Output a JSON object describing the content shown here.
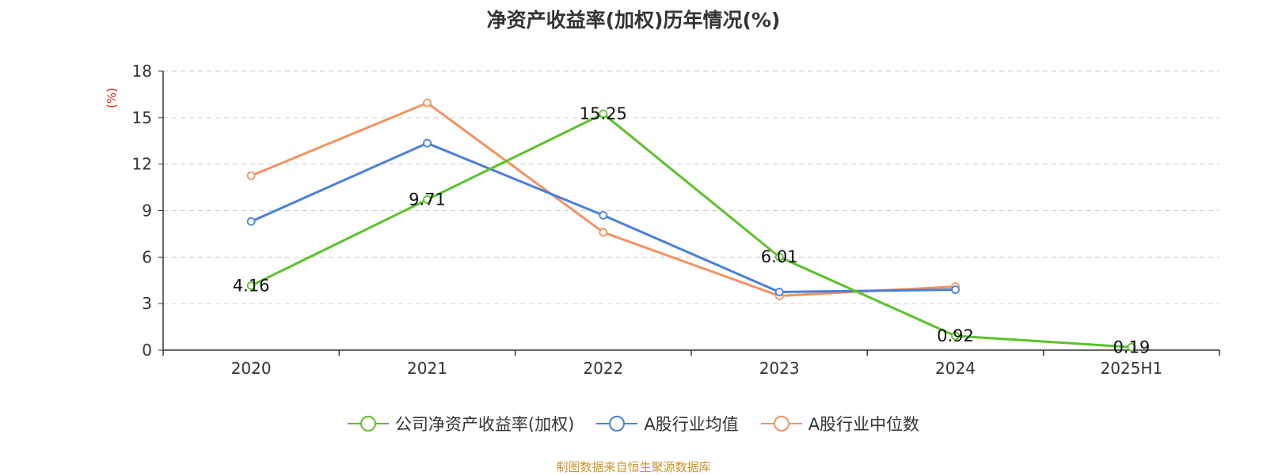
{
  "chart_data": {
    "type": "line",
    "title": "净资产收益率(加权)历年情况(%)",
    "ylabel": "(%)",
    "xlabel": "",
    "categories": [
      "2020",
      "2021",
      "2022",
      "2023",
      "2024",
      "2025H1"
    ],
    "ylim": [
      0,
      18
    ],
    "yticks": [
      0,
      3,
      6,
      9,
      12,
      15,
      18
    ],
    "grid": true,
    "legend_position": "bottom",
    "series": [
      {
        "name": "公司净资产收益率(加权)",
        "color": "#5ac229",
        "values": [
          4.16,
          9.71,
          15.25,
          6.01,
          0.92,
          0.19
        ],
        "labels": [
          "4.16",
          "9.71",
          "15.25",
          "6.01",
          "0.92",
          "0.19"
        ]
      },
      {
        "name": "A股行业均值",
        "color": "#4a7fd9",
        "values": [
          8.3,
          13.35,
          8.7,
          3.75,
          3.9,
          null
        ]
      },
      {
        "name": "A股行业中位数",
        "color": "#f4925f",
        "values": [
          11.25,
          15.95,
          7.6,
          3.5,
          4.1,
          null
        ]
      }
    ],
    "source": "制图数据来自恒生聚源数据库"
  }
}
